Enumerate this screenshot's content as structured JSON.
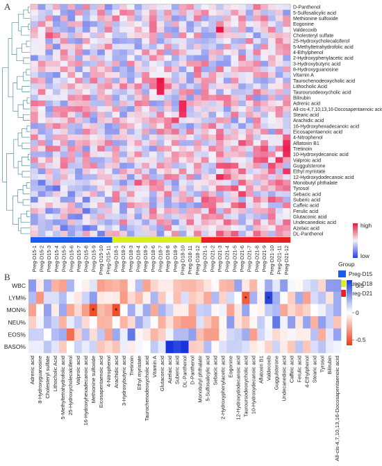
{
  "panels": {
    "a_letter": "A",
    "b_letter": "B"
  },
  "chart_data": [
    {
      "type": "heatmap",
      "panel": "A",
      "title": "",
      "row_labels": [
        "D-Panthenol",
        "5-Sulfosalicylic acid",
        "Methionine sulfoxide",
        "Eogonine",
        "Valdecoxib",
        "Cholesteryl sulfate",
        "25-Hydroxycholecalciferol",
        "5-Methyltetrahydrofolic acid",
        "4-Ethylphenol",
        "2-Hydroxyphenylacetic acid",
        "3-Hydroxybutyric acid",
        "8-Hydroxyguanosine",
        "Vitamin A",
        "Taurochenodeoxycholic acid",
        "Lithocholic Acid",
        "Tauroursodeoxycholic acid",
        "Bilirubin",
        "Adrenic acid",
        "All-cis-4,7,10,13,16-Docosapentaenoic acid",
        "Stearic acid",
        "Arachidic acid",
        "16-Hydroxyhexadecanoic acid",
        "Eicosapentaenoic acid",
        "4-Nitrophenol",
        "Aflatoxin B1",
        "Tretinoin",
        "10-Hydroxydecanoic acid",
        "Valproic acid",
        "Guggulsterone",
        "Ethyl myristate",
        "12-Hydroxydodecanoic acid",
        "Monobutyl phthalate",
        "Tyrosol",
        "Sebacic acid",
        "Suberic acid",
        "Caffeic acid",
        "Ferulic acid",
        "Glutaconic acid",
        "Undecanedioic acid",
        "Azelaic acid",
        "DL-Panthenol"
      ],
      "col_labels": [
        "Preg-D15-1",
        "Preg-D15-2",
        "Preg-D15-3",
        "Preg-D15-4",
        "Preg-D15-5",
        "Preg-D15-6",
        "Preg-D15-7",
        "Preg-D15-8",
        "Preg-D15-9",
        "Preg-D15-10",
        "Preg-D15-11",
        "Preg-D18-1",
        "Preg-D18-2",
        "Preg-D18-3",
        "Preg-D18-4",
        "Preg-D18-5",
        "Preg-D18-6",
        "Preg-D18-7",
        "Preg-D18-8",
        "Preg-D18-9",
        "Preg-D18-10",
        "Preg-D18-11",
        "Preg-D18-12",
        "Preg-D21-1",
        "Preg-D21-2",
        "Preg-D21-3",
        "Preg-D21-4",
        "Preg-D21-5",
        "Preg-D21-6",
        "Preg-D21-7",
        "Preg-D21-8",
        "Preg-D21-9",
        "Preg-D21-10",
        "Preg-D21-11",
        "Preg-D21-12"
      ],
      "groups": [
        {
          "name": "Preg-D15",
          "count": 11,
          "color": "#1a5cf0"
        },
        {
          "name": "Preg-D18",
          "count": 12,
          "color": "#dcef1c"
        },
        {
          "name": "Preg-D21",
          "count": 12,
          "color": "#ee1c24"
        }
      ],
      "group_legend_title": "Group",
      "colorbar_high": "high",
      "colorbar_low": "low",
      "value_range": [
        -1,
        1
      ],
      "hot_cells": [
        {
          "row": "Valdecoxib",
          "col": "Preg-D21-3",
          "value": 1.0
        },
        {
          "row": "Taurochenodeoxycholic acid",
          "col": "Preg-D18-7",
          "value": 1.0
        },
        {
          "row": "Lithocholic Acid",
          "col": "Preg-D18-7",
          "value": 0.95
        },
        {
          "row": "Tauroursodeoxycholic acid",
          "col": "Preg-D18-7",
          "value": 0.95
        },
        {
          "row": "Adrenic acid",
          "col": "Preg-D18-10",
          "value": 0.9
        },
        {
          "row": "All-cis-4,7,10,13,16-Docosapentaenoic acid",
          "col": "Preg-D18-10",
          "value": 0.9
        },
        {
          "row": "Stearic acid",
          "col": "Preg-D18-10",
          "value": 0.85
        },
        {
          "row": "Aflatoxin B1",
          "col": "Preg-D21-12",
          "value": 0.9
        },
        {
          "row": "Tretinoin",
          "col": "Preg-D21-12",
          "value": 0.95
        },
        {
          "row": "10-Hydroxydecanoic acid",
          "col": "Preg-D21-12",
          "value": 0.9
        },
        {
          "row": "Ethyl myristate",
          "col": "Preg-D21-12",
          "value": 0.85
        },
        {
          "row": "Valproic acid",
          "col": "Preg-D21-11",
          "value": 0.85
        },
        {
          "row": "12-Hydroxydodecanoic acid",
          "col": "Preg-D21-3",
          "value": 0.9
        },
        {
          "row": "Cholesteryl sulfate",
          "col": "Preg-D15-3",
          "value": 0.7
        },
        {
          "row": "Arachidic acid",
          "col": "Preg-D18-9",
          "value": 0.75
        },
        {
          "row": "8-Hydroxyguanosine",
          "col": "Preg-D18-12",
          "value": 0.6
        },
        {
          "row": "Tyrosol",
          "col": "Preg-D21-5",
          "value": 0.7
        },
        {
          "row": "Sebacic acid",
          "col": "Preg-D21-6",
          "value": 0.8
        },
        {
          "row": "Caffeic acid",
          "col": "Preg-D21-6",
          "value": 0.75
        },
        {
          "row": "Monobutyl phthalate",
          "col": "Preg-D18-4",
          "value": 0.7
        }
      ]
    },
    {
      "type": "heatmap",
      "panel": "B",
      "title": "",
      "row_labels": [
        "WBC",
        "LYM%",
        "MON%",
        "NEU%",
        "EOS%",
        "BASO%"
      ],
      "col_labels": [
        "Adrenic acid",
        "8-Hydroxyguanosine",
        "Cholesteryl sulfate",
        "Lithocholic Acid",
        "5-Methyltetrahydrofolic acid",
        "25-Hydroxycholecalciferol",
        "Valproic acid",
        "16-Hydroxyhexadecanoic acid",
        "Methionine sulfoxide",
        "Eicosapentaenoic acid",
        "4-Nitrophenol",
        "Arachidic acid",
        "3-Hydroxybutyric acid",
        "Tretinoin",
        "Ethyl myristate",
        "Taurochenodeoxycholic acid",
        "Vitamin A",
        "Glutaconic acid",
        "Azelaic acid",
        "Suberic acid",
        "DL-Panthenol",
        "D-Panthenol",
        "Monobutyl phthalate",
        "5-Sulfosalicylic acid",
        "Sebacic acid",
        "2-Hydroxyphenylacetic acid",
        "Eogonine",
        "12-Hydroxydodecanoic acid",
        "Tauroursodeoxycholic acid",
        "10-Hydroxydecanoic acid",
        "Aflatoxin B1",
        "Valdecoxib",
        "Guggulsterone",
        "Undecanedioic acid",
        "Caffeic acid",
        "Ferulic acid",
        "4-Ethylphenol",
        "Stearic acid",
        "Tyrosol",
        "Bilirubin",
        "All-cis-4,7,10,13,16-Docosapentaenoic acid"
      ],
      "colorbar_ticks": [
        0.5,
        0,
        -0.5
      ],
      "value_range": [
        -0.6,
        0.6
      ],
      "significance_marks": [
        {
          "row": "MON%",
          "col": "Methionine sulfoxide",
          "mark": "*"
        },
        {
          "row": "MON%",
          "col": "Arachidic acid",
          "mark": "*"
        },
        {
          "row": "LYM%",
          "col": "Tauroursodeoxycholic acid",
          "mark": "*"
        },
        {
          "row": "LYM%",
          "col": "Valdecoxib",
          "mark": "*"
        }
      ],
      "notable_cells": [
        {
          "row": "BASO%",
          "col": "Azelaic acid",
          "value": 0.6
        },
        {
          "row": "BASO%",
          "col": "Suberic acid",
          "value": 0.55
        },
        {
          "row": "BASO%",
          "col": "DL-Panthenol",
          "value": 0.6
        },
        {
          "row": "EOS%",
          "col": "Tretinoin",
          "value": 0.4
        },
        {
          "row": "MON%",
          "col": "Methionine sulfoxide",
          "value": -0.55
        },
        {
          "row": "MON%",
          "col": "Arachidic acid",
          "value": -0.55
        },
        {
          "row": "LYM%",
          "col": "Tauroursodeoxycholic acid",
          "value": -0.5
        },
        {
          "row": "LYM%",
          "col": "Valdecoxib",
          "value": 0.55
        },
        {
          "row": "EOS%",
          "col": "25-Hydroxycholecalciferol",
          "value": -0.45
        },
        {
          "row": "NEU%",
          "col": "Guggulsterone",
          "value": 0.4
        },
        {
          "row": "WBC",
          "col": "Adrenic acid",
          "value": 0.3
        },
        {
          "row": "WBC",
          "col": "All-cis-4,7,10,13,16-Docosapentaenoic acid",
          "value": 0.3
        }
      ]
    }
  ]
}
